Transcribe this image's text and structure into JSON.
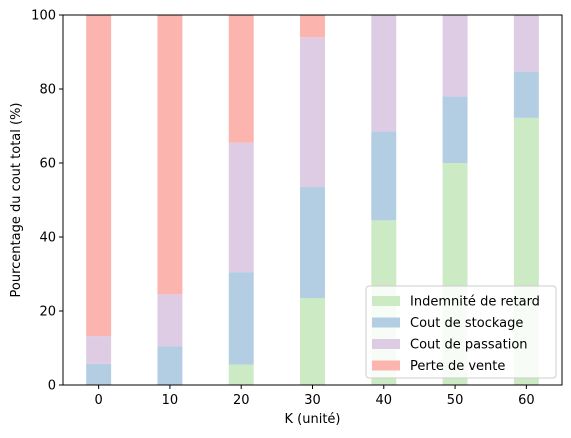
{
  "chart_data": {
    "type": "bar",
    "stacked": true,
    "categories": [
      "0",
      "10",
      "20",
      "30",
      "40",
      "50",
      "60"
    ],
    "x": [
      0,
      10,
      20,
      30,
      40,
      50,
      60
    ],
    "xlabel": "K (unité)",
    "ylabel": "Pourcentage du cout total (%)",
    "xlim": [
      -5,
      65
    ],
    "ylim": [
      0,
      100
    ],
    "yticks": [
      0,
      20,
      40,
      60,
      80,
      100
    ],
    "xticks": [
      0,
      10,
      20,
      30,
      40,
      50,
      60
    ],
    "grid": false,
    "legend_position": "bottom-right",
    "series": [
      {
        "name": "Indemnité de retard",
        "color": "#ccebc5",
        "values": [
          0,
          0,
          5.5,
          23.5,
          44.5,
          60,
          72.2
        ]
      },
      {
        "name": "Cout de stockage",
        "color": "#b3cde3",
        "values": [
          5.7,
          10.5,
          25,
          30,
          24,
          18,
          12.5
        ]
      },
      {
        "name": "Cout de passation",
        "color": "#decbe4",
        "values": [
          7.5,
          14,
          35,
          40.5,
          31.5,
          22,
          15.3
        ]
      },
      {
        "name": "Perte de vente",
        "color": "#fbb4ae",
        "values": [
          86.8,
          75.5,
          34.5,
          6,
          0,
          0,
          0
        ]
      }
    ]
  }
}
